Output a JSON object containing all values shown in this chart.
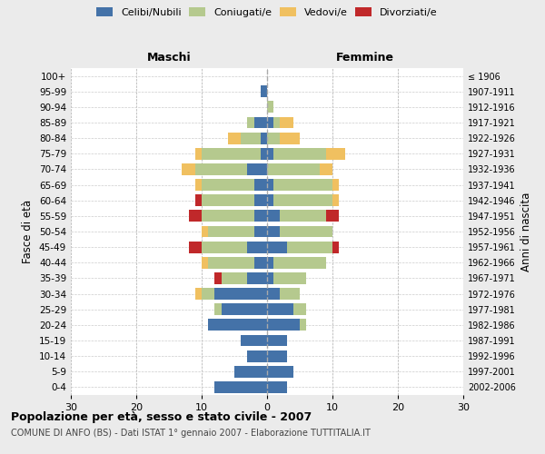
{
  "age_groups": [
    "0-4",
    "5-9",
    "10-14",
    "15-19",
    "20-24",
    "25-29",
    "30-34",
    "35-39",
    "40-44",
    "45-49",
    "50-54",
    "55-59",
    "60-64",
    "65-69",
    "70-74",
    "75-79",
    "80-84",
    "85-89",
    "90-94",
    "95-99",
    "100+"
  ],
  "birth_years": [
    "2002-2006",
    "1997-2001",
    "1992-1996",
    "1987-1991",
    "1982-1986",
    "1977-1981",
    "1972-1976",
    "1967-1971",
    "1962-1966",
    "1957-1961",
    "1952-1956",
    "1947-1951",
    "1942-1946",
    "1937-1941",
    "1932-1936",
    "1927-1931",
    "1922-1926",
    "1917-1921",
    "1912-1916",
    "1907-1911",
    "≤ 1906"
  ],
  "maschi": {
    "celibi": [
      8,
      5,
      3,
      4,
      9,
      7,
      8,
      3,
      2,
      3,
      2,
      2,
      2,
      2,
      3,
      1,
      1,
      2,
      0,
      1,
      0
    ],
    "coniugati": [
      0,
      0,
      0,
      0,
      0,
      1,
      2,
      4,
      7,
      7,
      7,
      8,
      8,
      8,
      8,
      9,
      3,
      1,
      0,
      0,
      0
    ],
    "vedovi": [
      0,
      0,
      0,
      0,
      0,
      0,
      1,
      0,
      1,
      0,
      1,
      0,
      0,
      1,
      2,
      1,
      2,
      0,
      0,
      0,
      0
    ],
    "divorziati": [
      0,
      0,
      0,
      0,
      0,
      0,
      0,
      1,
      0,
      2,
      0,
      2,
      1,
      0,
      0,
      0,
      0,
      0,
      0,
      0,
      0
    ]
  },
  "femmine": {
    "nubili": [
      3,
      4,
      3,
      3,
      5,
      4,
      2,
      1,
      1,
      3,
      2,
      2,
      1,
      1,
      0,
      1,
      0,
      1,
      0,
      0,
      0
    ],
    "coniugate": [
      0,
      0,
      0,
      0,
      1,
      2,
      3,
      5,
      8,
      7,
      8,
      7,
      9,
      9,
      8,
      8,
      2,
      1,
      1,
      0,
      0
    ],
    "vedove": [
      0,
      0,
      0,
      0,
      0,
      0,
      0,
      0,
      0,
      0,
      0,
      0,
      1,
      1,
      2,
      3,
      3,
      2,
      0,
      0,
      0
    ],
    "divorziate": [
      0,
      0,
      0,
      0,
      0,
      0,
      0,
      0,
      0,
      1,
      0,
      2,
      0,
      0,
      0,
      0,
      0,
      0,
      0,
      0,
      0
    ]
  },
  "color_celibi": "#4472a8",
  "color_coniugati": "#b5c98e",
  "color_vedovi": "#f0c060",
  "color_divorziati": "#c0282a",
  "title": "Popolazione per età, sesso e stato civile - 2007",
  "subtitle": "COMUNE DI ANFO (BS) - Dati ISTAT 1° gennaio 2007 - Elaborazione TUTTITALIA.IT",
  "xlabel_left": "Maschi",
  "xlabel_right": "Femmine",
  "ylabel": "Fasce di età",
  "ylabel_right": "Anni di nascita",
  "xlim": 30,
  "bg_color": "#ebebeb",
  "plot_bg": "#ffffff"
}
